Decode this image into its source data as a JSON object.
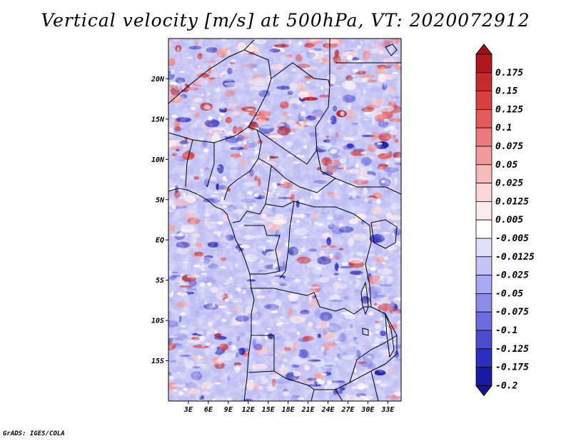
{
  "title": "Vertical velocity [m/s] at 500hPa, VT: 2020072912",
  "footer": "GrADS: IGES/COLA",
  "map": {
    "region": "Central Africa",
    "lat_range": [
      -20,
      25
    ],
    "lon_range": [
      0,
      35
    ],
    "lat_ticks": [
      {
        "value": 20,
        "label": "20N"
      },
      {
        "value": 15,
        "label": "15N"
      },
      {
        "value": 10,
        "label": "10N"
      },
      {
        "value": 5,
        "label": "5N"
      },
      {
        "value": 0,
        "label": "EQ"
      },
      {
        "value": -5,
        "label": "5S"
      },
      {
        "value": -10,
        "label": "10S"
      },
      {
        "value": -15,
        "label": "15S"
      }
    ],
    "lon_ticks": [
      {
        "value": 3,
        "label": "3E"
      },
      {
        "value": 6,
        "label": "6E"
      },
      {
        "value": 9,
        "label": "9E"
      },
      {
        "value": 12,
        "label": "12E"
      },
      {
        "value": 15,
        "label": "15E"
      },
      {
        "value": 18,
        "label": "18E"
      },
      {
        "value": 21,
        "label": "21E"
      },
      {
        "value": 24,
        "label": "24E"
      },
      {
        "value": 27,
        "label": "27E"
      },
      {
        "value": 30,
        "label": "30E"
      },
      {
        "value": 33,
        "label": "33E"
      }
    ]
  },
  "colorbar": {
    "levels": [
      {
        "label": "0.175",
        "color": "#b2161d"
      },
      {
        "label": "0.15",
        "color": "#c72a2a"
      },
      {
        "label": "0.125",
        "color": "#d94040"
      },
      {
        "label": "0.1",
        "color": "#e35a5a"
      },
      {
        "label": "0.075",
        "color": "#ec7a7a"
      },
      {
        "label": "0.05",
        "color": "#f29a9a"
      },
      {
        "label": "0.025",
        "color": "#f7baba"
      },
      {
        "label": "0.0125",
        "color": "#fad6d6"
      },
      {
        "label": "0.005",
        "color": "#fdecec"
      },
      {
        "label": "-0.005",
        "color": "#ffffff"
      },
      {
        "label": "-0.0125",
        "color": "#e0e0fb"
      },
      {
        "label": "-0.025",
        "color": "#c4c4f6"
      },
      {
        "label": "-0.05",
        "color": "#a8a8f0"
      },
      {
        "label": "-0.075",
        "color": "#8b8be8"
      },
      {
        "label": "-0.1",
        "color": "#6c6cde"
      },
      {
        "label": "-0.125",
        "color": "#4c4cd2"
      },
      {
        "label": "-0.175",
        "color": "#2e2ec4"
      },
      {
        "label": "-0.2",
        "color": "#1a1aa8"
      }
    ],
    "top_color": "#a01010",
    "bottom_color": "#14149a"
  }
}
